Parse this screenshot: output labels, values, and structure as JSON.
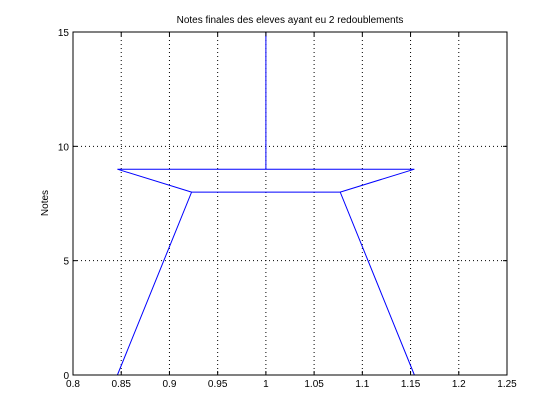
{
  "chart_data": {
    "type": "line",
    "title": "Notes finales des eleves ayant eu 2 redoublements",
    "xlabel": "",
    "ylabel": "Notes",
    "xlim": [
      0.8,
      1.25
    ],
    "ylim": [
      0,
      15
    ],
    "xticks": [
      0.8,
      0.85,
      0.9,
      0.95,
      1,
      1.05,
      1.1,
      1.15,
      1.2,
      1.25
    ],
    "xtick_labels": [
      "0.8",
      "0.85",
      "0.9",
      "0.95",
      "1",
      "1.05",
      "1.1",
      "1.15",
      "1.2",
      "1.25"
    ],
    "yticks": [
      0,
      5,
      10,
      15
    ],
    "ytick_labels": [
      "0",
      "5",
      "10",
      "15"
    ],
    "grid": true,
    "grid_style": "dotted",
    "line_color": "#0000ff",
    "series": [
      {
        "values": [
          {
            "x": 0.846,
            "y": 0
          },
          {
            "x": 0.923,
            "y": 8
          },
          {
            "x": 1.077,
            "y": 8
          },
          {
            "x": 1.154,
            "y": 0
          }
        ]
      },
      {
        "values": [
          {
            "x": 0.923,
            "y": 8
          },
          {
            "x": 0.846,
            "y": 9
          },
          {
            "x": 1.154,
            "y": 9
          },
          {
            "x": 1.077,
            "y": 8
          }
        ]
      },
      {
        "values": [
          {
            "x": 1,
            "y": 9
          },
          {
            "x": 1,
            "y": 15
          }
        ]
      }
    ]
  }
}
